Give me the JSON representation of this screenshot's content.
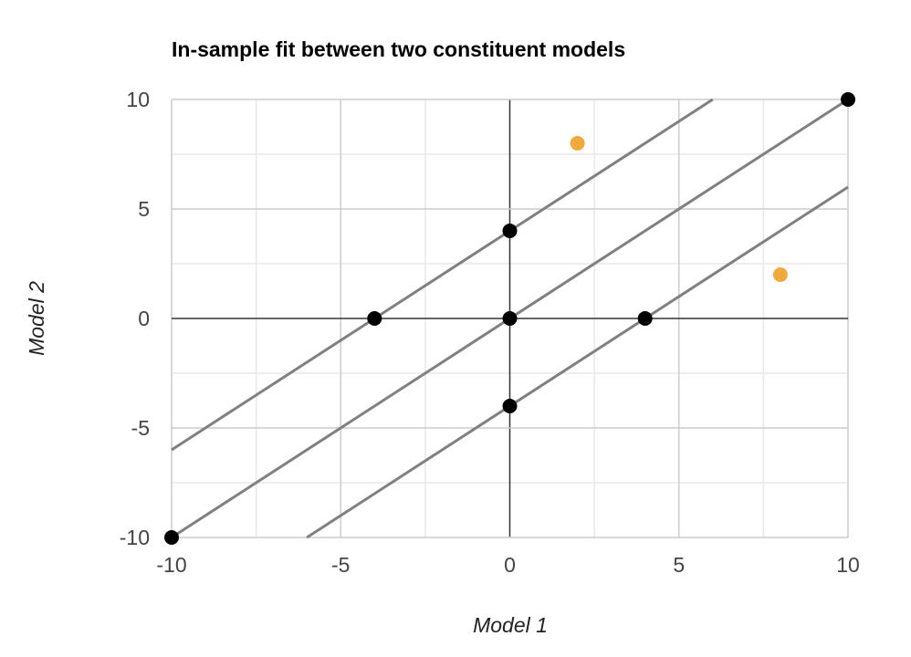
{
  "chart_data": {
    "type": "scatter",
    "title": "In-sample fit between two constituent models",
    "xlabel": "Model 1",
    "ylabel": "Model 2",
    "xlim": [
      -10,
      10
    ],
    "ylim": [
      -10,
      10
    ],
    "x_ticks": [
      -10,
      -5,
      0,
      5,
      10
    ],
    "y_ticks": [
      -10,
      -5,
      0,
      5,
      10
    ],
    "x_tick_labels": [
      "-10",
      "-5",
      "0",
      "5",
      "10"
    ],
    "y_tick_labels": [
      "-10",
      "-5",
      "0",
      "5",
      "10"
    ],
    "minor_grid_step": 2.5,
    "grid": true,
    "legend": "none",
    "lines": [
      {
        "x": [
          -10,
          6
        ],
        "y": [
          -6,
          10
        ]
      },
      {
        "x": [
          -10,
          10
        ],
        "y": [
          -10,
          10
        ]
      },
      {
        "x": [
          -6,
          10
        ],
        "y": [
          -10,
          6
        ]
      }
    ],
    "series": [
      {
        "color": "#000000",
        "points": [
          {
            "x": -10,
            "y": -10
          },
          {
            "x": 10,
            "y": 10
          },
          {
            "x": -4,
            "y": 0
          },
          {
            "x": 0,
            "y": 0
          },
          {
            "x": 4,
            "y": 0
          },
          {
            "x": 0,
            "y": 4
          },
          {
            "x": 0,
            "y": -4
          }
        ]
      },
      {
        "color": "#f2a93b",
        "points": [
          {
            "x": 2,
            "y": 8
          },
          {
            "x": 8,
            "y": 2
          }
        ]
      }
    ],
    "colors": {
      "major_grid": "#cccccc",
      "minor_grid": "#e8e8e8",
      "zero_axis": "#333333",
      "line": "#808080"
    }
  }
}
